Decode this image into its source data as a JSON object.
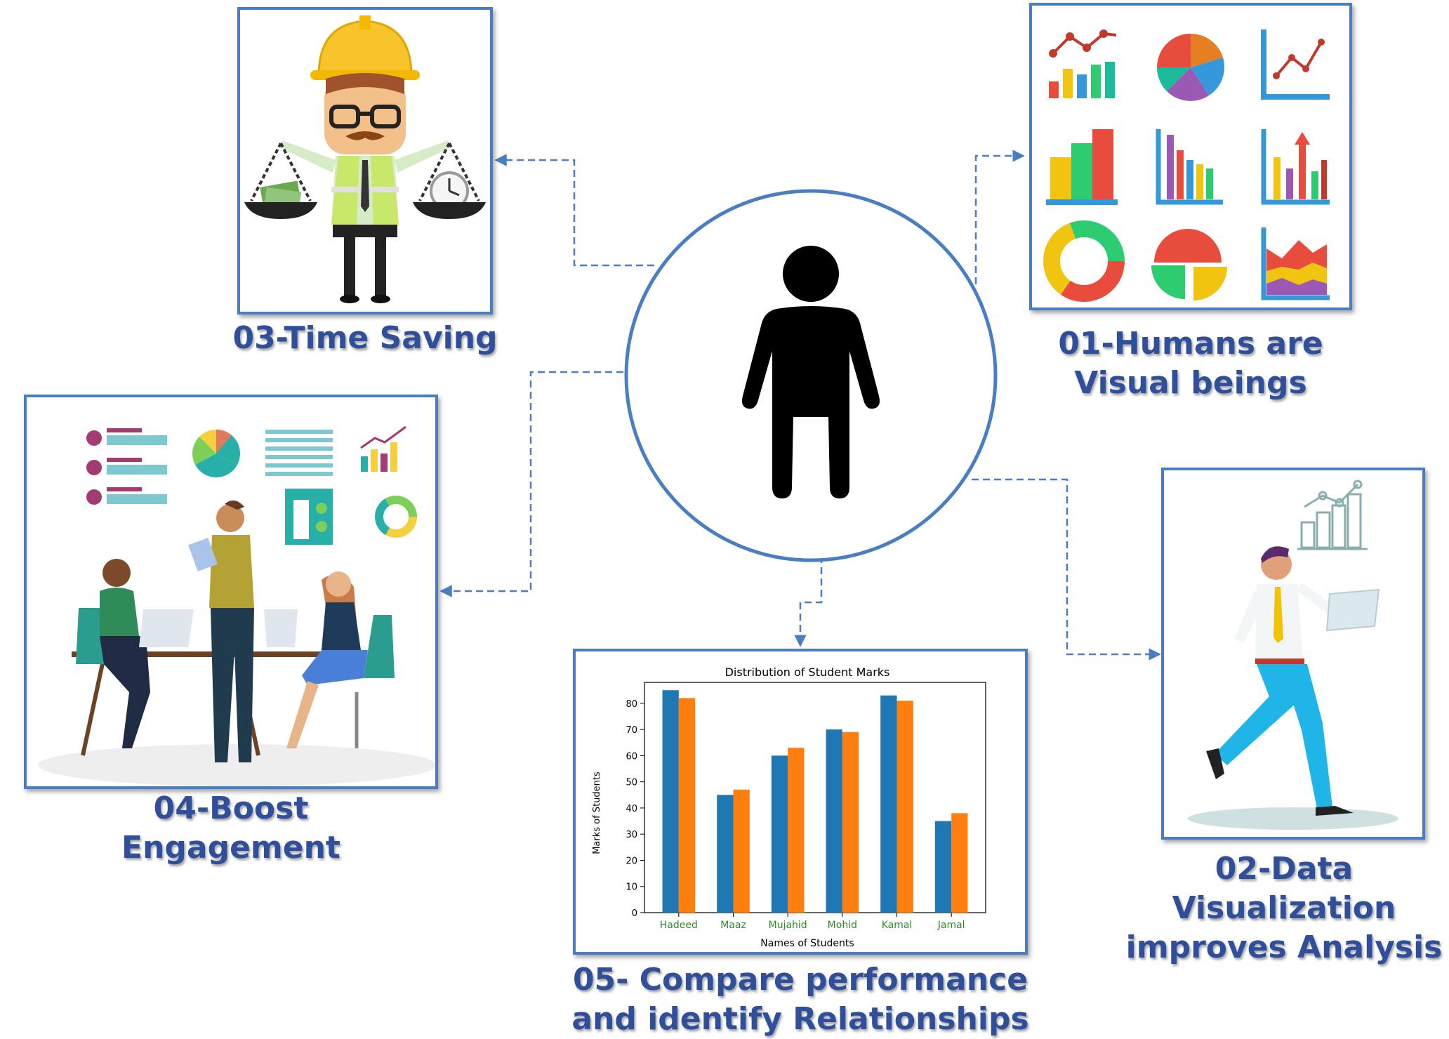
{
  "center": {
    "label": "person-icon"
  },
  "items": [
    {
      "id": "01",
      "caption_lines": [
        "01-Humans are",
        "Visual beings"
      ],
      "icon": "chart-grid"
    },
    {
      "id": "02",
      "caption_lines": [
        "02-Data",
        "Visualization",
        "improves Analysis"
      ],
      "icon": "running-man-laptop"
    },
    {
      "id": "03",
      "caption_lines": [
        "03-Time Saving"
      ],
      "icon": "worker-balance-scale"
    },
    {
      "id": "04",
      "caption_lines": [
        "04-Boost",
        "Engagement"
      ],
      "icon": "team-at-table"
    },
    {
      "id": "05",
      "caption_lines": [
        "05- Compare performance",
        "and identify Relationships"
      ],
      "icon": "bar-chart"
    }
  ],
  "chart_data": {
    "type": "bar",
    "title": "Distribution of Student Marks",
    "xlabel": "Names of Students",
    "ylabel": "Marks of Students",
    "categories": [
      "Hadeed",
      "Maaz",
      "Mujahid",
      "Mohid",
      "Kamal",
      "Jamal"
    ],
    "category_label_colors": [
      "#2e8b2e",
      "#2e8b2e",
      "#2e8b2e",
      "#2e8b2e",
      "#2e8b2e",
      "#2e8b2e"
    ],
    "series": [
      {
        "values": [
          85,
          45,
          60,
          70,
          83,
          35
        ],
        "color": "#1f77b4"
      },
      {
        "values": [
          82,
          47,
          63,
          69,
          81,
          38
        ],
        "color": "#ff7f0e"
      }
    ],
    "ylim": [
      0,
      88
    ],
    "yticks": [
      0,
      10,
      20,
      30,
      40,
      50,
      60,
      70,
      80
    ],
    "grid": false
  },
  "colors": {
    "panel_border": "#4a7ec2",
    "caption": "#2f4f9a",
    "connector": "#4a7ec2"
  }
}
